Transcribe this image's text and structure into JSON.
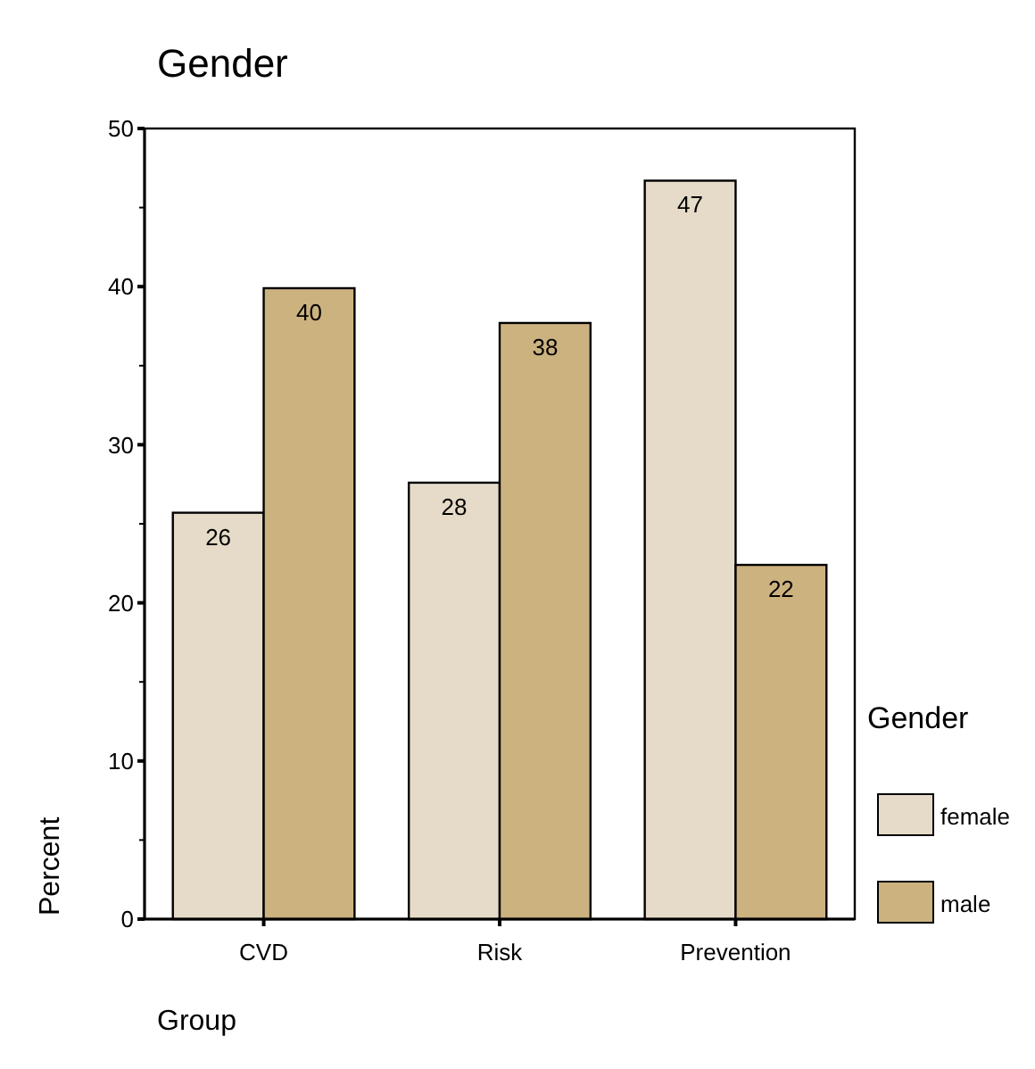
{
  "chart_data": {
    "type": "bar",
    "title": "Gender",
    "xlabel": "Group",
    "ylabel": "Percent",
    "legend_title": "Gender",
    "categories": [
      "CVD",
      "Risk",
      "Prevention"
    ],
    "series": [
      {
        "name": "female",
        "color": "#e6dbc8",
        "values": [
          25.7,
          27.6,
          46.7
        ],
        "value_labels": [
          "26",
          "28",
          "47"
        ]
      },
      {
        "name": "male",
        "color": "#ccb27f",
        "values": [
          39.9,
          37.7,
          22.4
        ],
        "value_labels": [
          "40",
          "38",
          "22"
        ]
      }
    ],
    "ylim": [
      0,
      50
    ],
    "yticks": [
      0,
      {
        "value": 5,
        "label": null
      },
      10,
      {
        "value": 15,
        "label": null
      },
      20,
      {
        "value": 25,
        "label": null
      },
      30,
      {
        "value": 35,
        "label": null
      },
      40,
      {
        "value": 45,
        "label": null
      },
      50
    ],
    "grid": false,
    "legend": "right"
  }
}
